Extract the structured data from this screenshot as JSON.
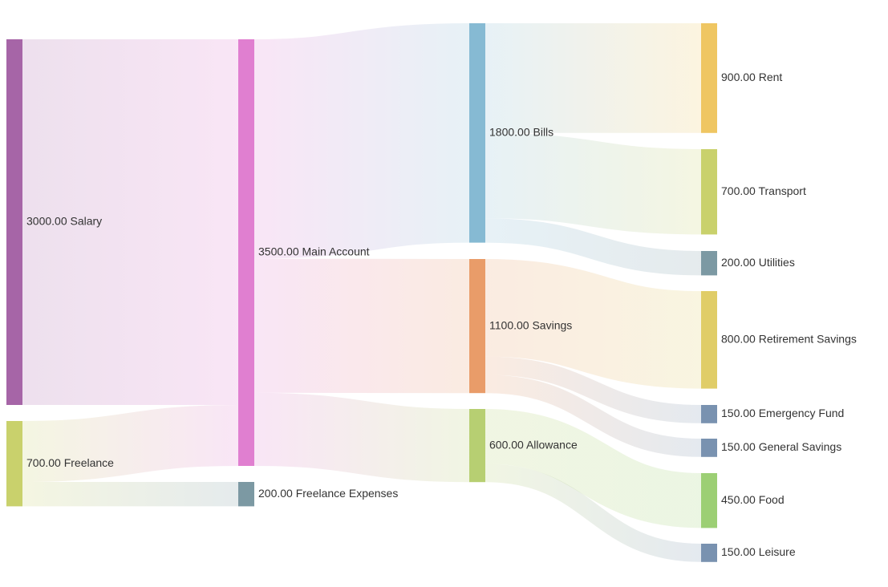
{
  "chart_data": {
    "type": "sankey",
    "nodes": [
      {
        "id": "salary",
        "name": "Salary",
        "value": 3000,
        "label": "3000.00 Salary",
        "color": "#a665a7"
      },
      {
        "id": "freelance",
        "name": "Freelance",
        "value": 700,
        "label": "700.00 Freelance",
        "color": "#c9d16c"
      },
      {
        "id": "main",
        "name": "Main Account",
        "value": 3500,
        "label": "3500.00 Main Account",
        "color": "#e07fd0"
      },
      {
        "id": "fexp",
        "name": "Freelance Expenses",
        "value": 200,
        "label": "200.00 Freelance Expenses",
        "color": "#7c99a3"
      },
      {
        "id": "bills",
        "name": "Bills",
        "value": 1800,
        "label": "1800.00 Bills",
        "color": "#86bad3"
      },
      {
        "id": "savings",
        "name": "Savings",
        "value": 1100,
        "label": "1100.00 Savings",
        "color": "#e99c69"
      },
      {
        "id": "allowance",
        "name": "Allowance",
        "value": 600,
        "label": "600.00 Allowance",
        "color": "#b7cf72"
      },
      {
        "id": "rent",
        "name": "Rent",
        "value": 900,
        "label": "900.00 Rent",
        "color": "#efc662"
      },
      {
        "id": "transport",
        "name": "Transport",
        "value": 700,
        "label": "700.00 Transport",
        "color": "#c9d16c"
      },
      {
        "id": "utilities",
        "name": "Utilities",
        "value": 200,
        "label": "200.00 Utilities",
        "color": "#7c99a3"
      },
      {
        "id": "retire",
        "name": "Retirement Savings",
        "value": 800,
        "label": "800.00 Retirement Savings",
        "color": "#e0cd67"
      },
      {
        "id": "emerg",
        "name": "Emergency Fund",
        "value": 150,
        "label": "150.00 Emergency Fund",
        "color": "#7992b0"
      },
      {
        "id": "gensav",
        "name": "General Savings",
        "value": 150,
        "label": "150.00 General Savings",
        "color": "#7992b0"
      },
      {
        "id": "food",
        "name": "Food",
        "value": 450,
        "label": "450.00 Food",
        "color": "#9ccf74"
      },
      {
        "id": "leisure",
        "name": "Leisure",
        "value": 150,
        "label": "150.00 Leisure",
        "color": "#7992b0"
      }
    ],
    "links": [
      {
        "source": "salary",
        "target": "main",
        "value": 3000
      },
      {
        "source": "freelance",
        "target": "main",
        "value": 500
      },
      {
        "source": "freelance",
        "target": "fexp",
        "value": 200
      },
      {
        "source": "main",
        "target": "bills",
        "value": 1800
      },
      {
        "source": "main",
        "target": "savings",
        "value": 1100
      },
      {
        "source": "main",
        "target": "allowance",
        "value": 600
      },
      {
        "source": "bills",
        "target": "rent",
        "value": 900
      },
      {
        "source": "bills",
        "target": "transport",
        "value": 700
      },
      {
        "source": "bills",
        "target": "utilities",
        "value": 200
      },
      {
        "source": "savings",
        "target": "retire",
        "value": 800
      },
      {
        "source": "savings",
        "target": "emerg",
        "value": 150
      },
      {
        "source": "savings",
        "target": "gensav",
        "value": 150
      },
      {
        "source": "allowance",
        "target": "food",
        "value": 450
      },
      {
        "source": "allowance",
        "target": "leisure",
        "value": 150
      }
    ]
  }
}
